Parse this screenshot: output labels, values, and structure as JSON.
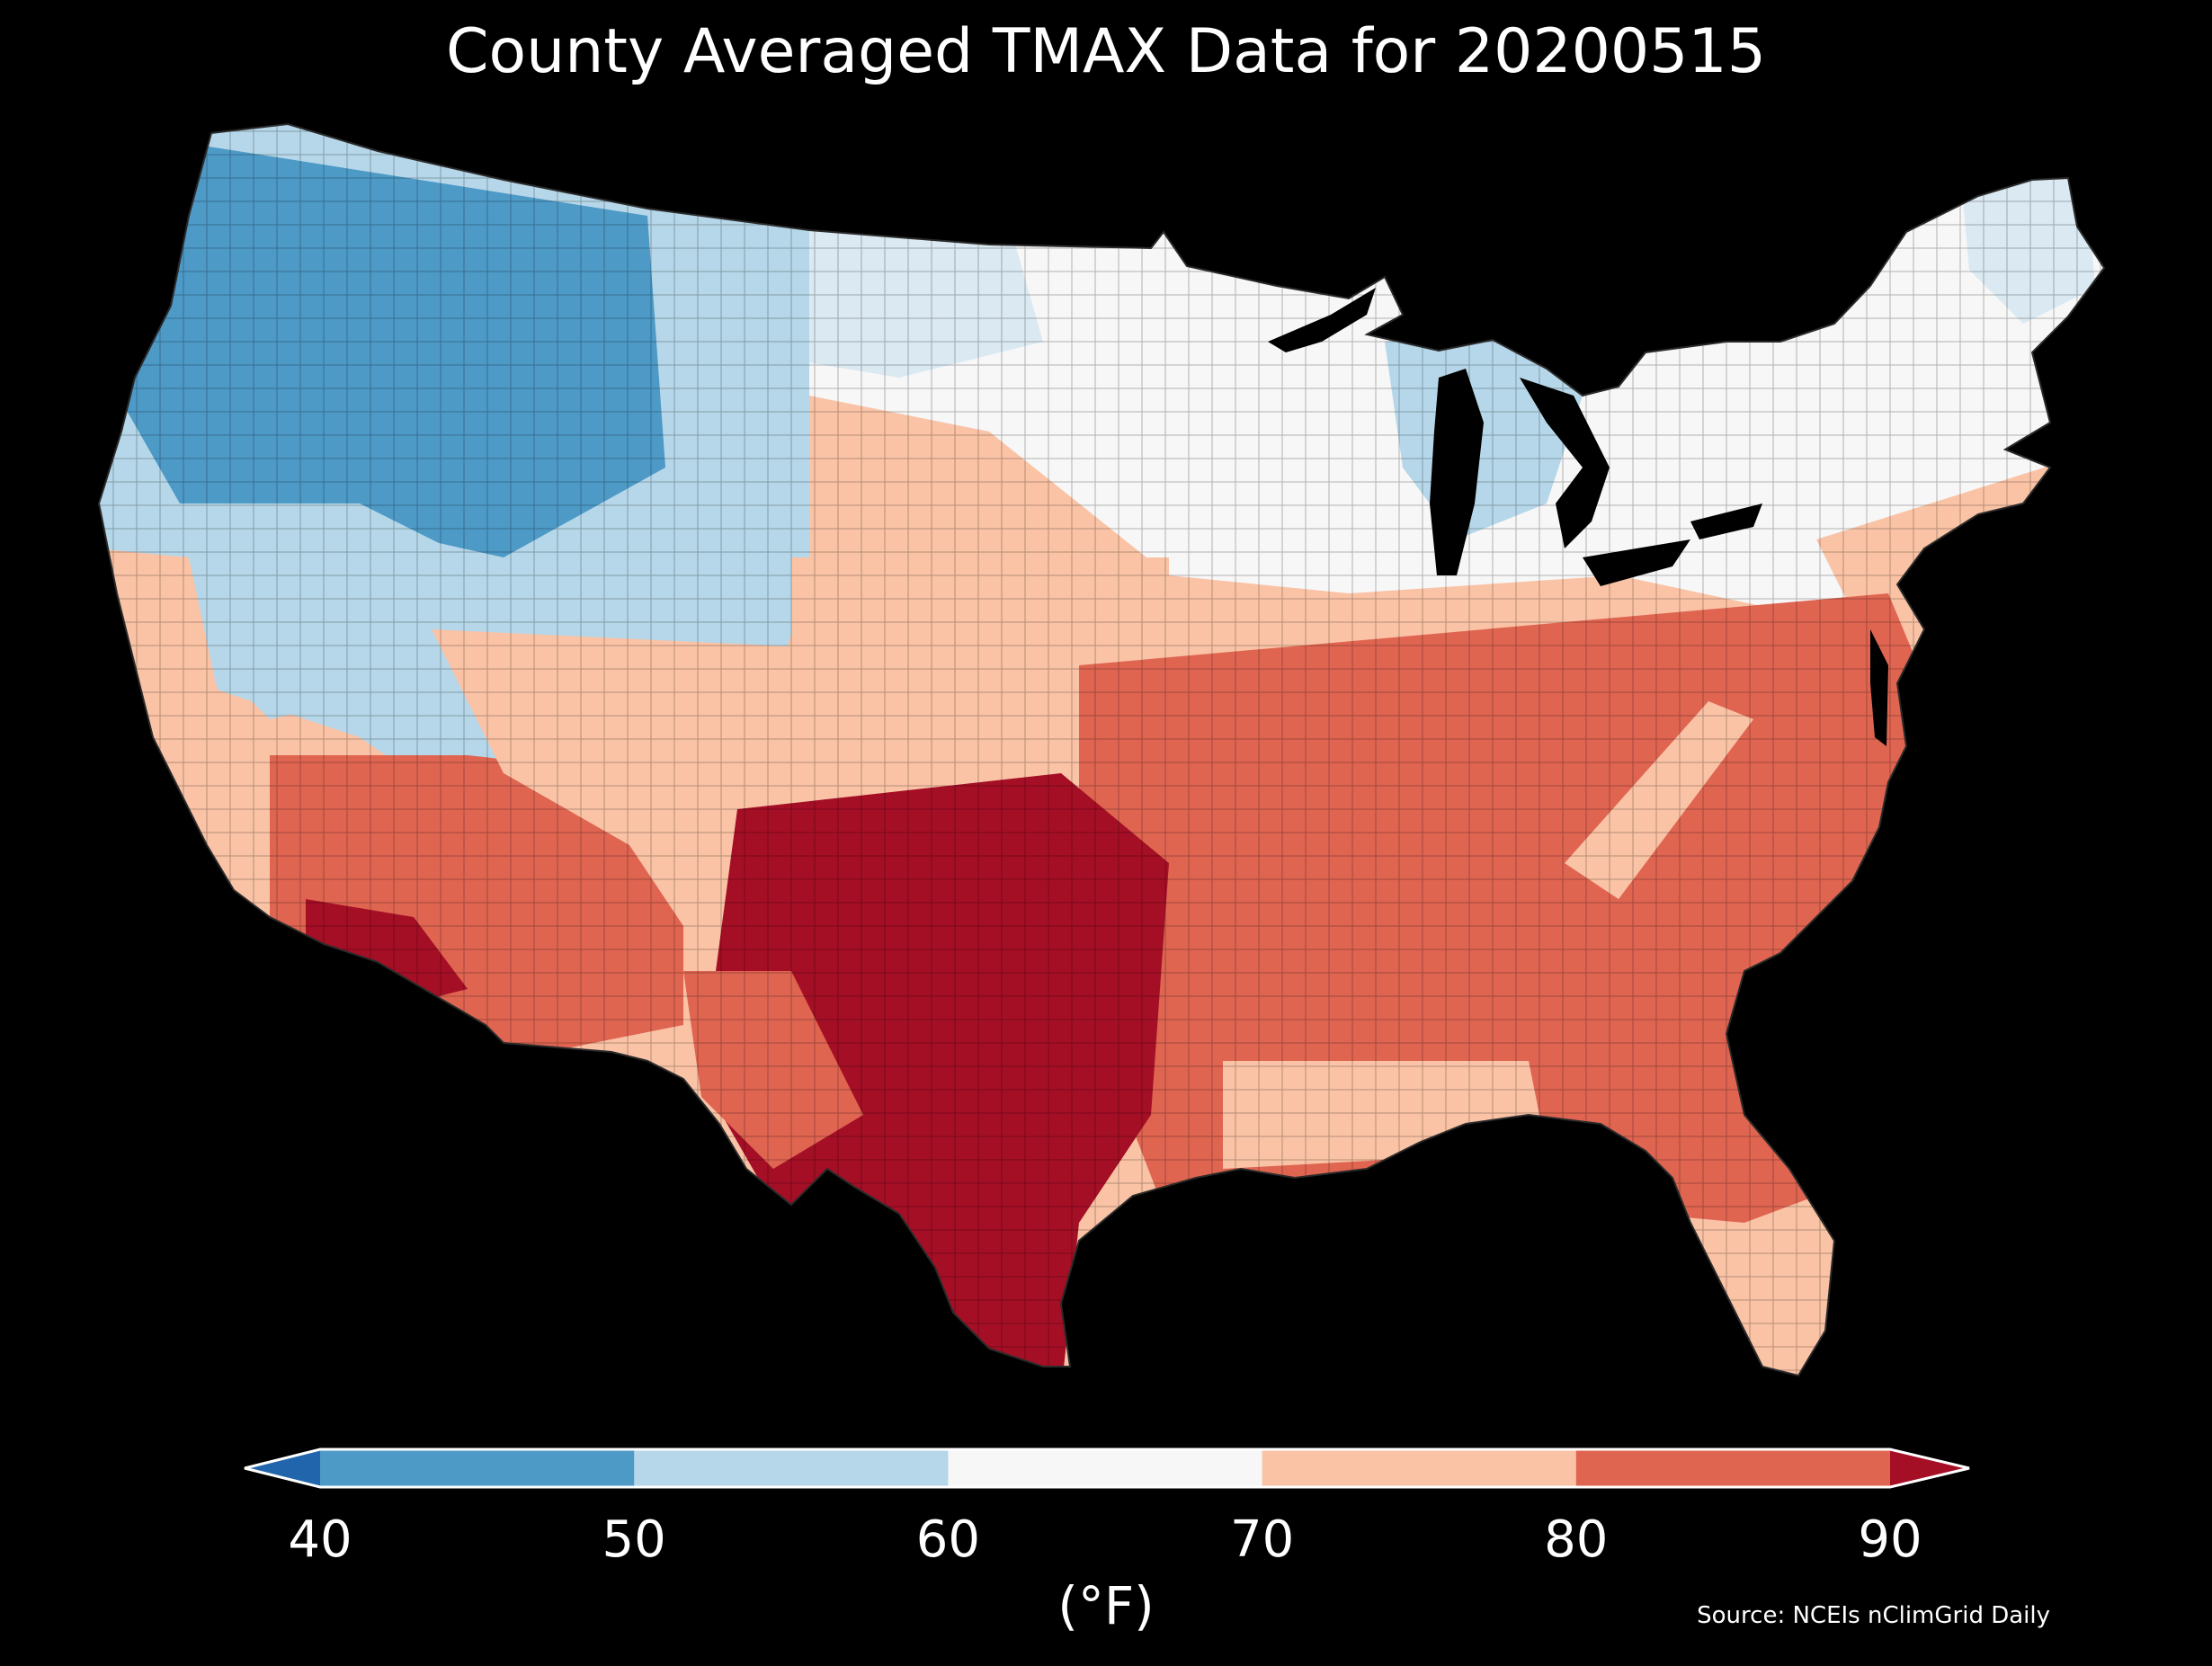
{
  "title": "County Averaged TMAX Data for 20200515",
  "colorbar": {
    "units": "(°F)",
    "ticks": [
      "40",
      "50",
      "60",
      "70",
      "80",
      "90"
    ],
    "bins": [
      {
        "range": "<40",
        "color": "#2166ac"
      },
      {
        "range": "40-50",
        "color": "#4d9ac7"
      },
      {
        "range": "50-60",
        "color": "#b6d7e9"
      },
      {
        "range": "60-70",
        "color": "#f7f7f7"
      },
      {
        "range": "70-80",
        "color": "#fac3a6"
      },
      {
        "range": "80-90",
        "color": "#df6551"
      },
      {
        "range": ">90",
        "color": "#a50f26"
      }
    ],
    "extend": "both"
  },
  "source": "Source: NCEIs nClimGrid Daily",
  "map": {
    "region": "Contiguous United States",
    "variable": "TMAX",
    "date": "20200515",
    "background_color": "#000000",
    "regional_pattern": [
      {
        "region": "Pacific Northwest and Northern Rockies",
        "bin": "40-50"
      },
      {
        "region": "Northern Great Basin and Montana",
        "bin": "50-60"
      },
      {
        "region": "Upper Midwest and Great Lakes",
        "bin": "60-70"
      },
      {
        "region": "Northeast",
        "bin": "60-70"
      },
      {
        "region": "Central Plains",
        "bin": "70-80"
      },
      {
        "region": "Southeast and Mid-Atlantic",
        "bin": "80-90"
      },
      {
        "region": "Desert Southwest",
        "bin": "80-90"
      },
      {
        "region": "Texas and Southern Plains",
        "bin": ">90"
      }
    ]
  }
}
